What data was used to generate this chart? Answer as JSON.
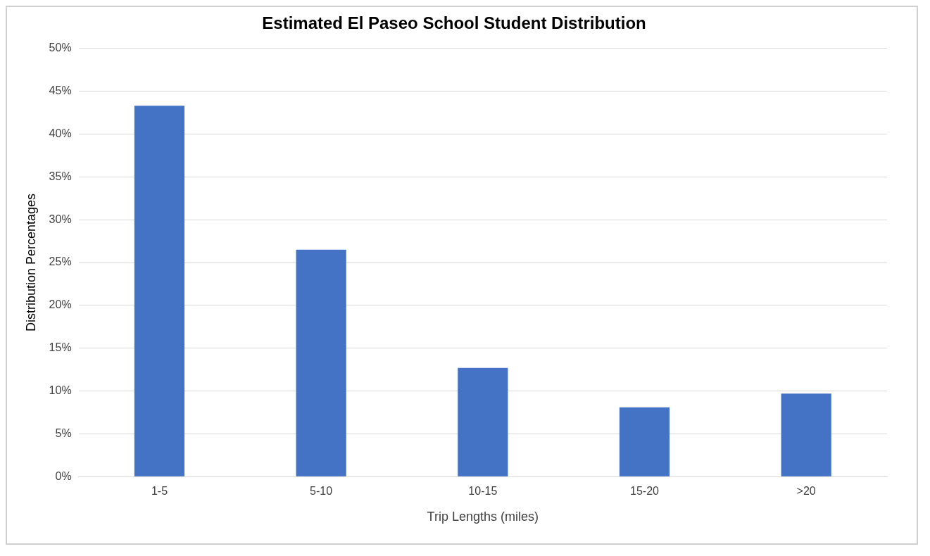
{
  "chart_data": {
    "type": "bar",
    "title": "Estimated El Paseo School Student Distribution",
    "xlabel": "Trip Lengths (miles)",
    "ylabel": "Distribution Percentages",
    "categories": [
      "1-5",
      "5-10",
      "10-15",
      "15-20",
      ">20"
    ],
    "series": [
      {
        "color": "#4472c4",
        "values": [
          43.3,
          26.5,
          12.7,
          8.1,
          9.7
        ]
      }
    ],
    "ylim": [
      0,
      50
    ],
    "yticks": [
      {
        "value": 0,
        "label": "0%"
      },
      {
        "value": 5,
        "label": "5%"
      },
      {
        "value": 10,
        "label": "10%"
      },
      {
        "value": 15,
        "label": "15%"
      },
      {
        "value": 20,
        "label": "20%"
      },
      {
        "value": 25,
        "label": "25%"
      },
      {
        "value": 30,
        "label": "30%"
      },
      {
        "value": 35,
        "label": "35%"
      },
      {
        "value": 40,
        "label": "40%"
      },
      {
        "value": 45,
        "label": "45%"
      },
      {
        "value": 50,
        "label": "50%"
      }
    ],
    "grid": "y",
    "legend": false
  }
}
